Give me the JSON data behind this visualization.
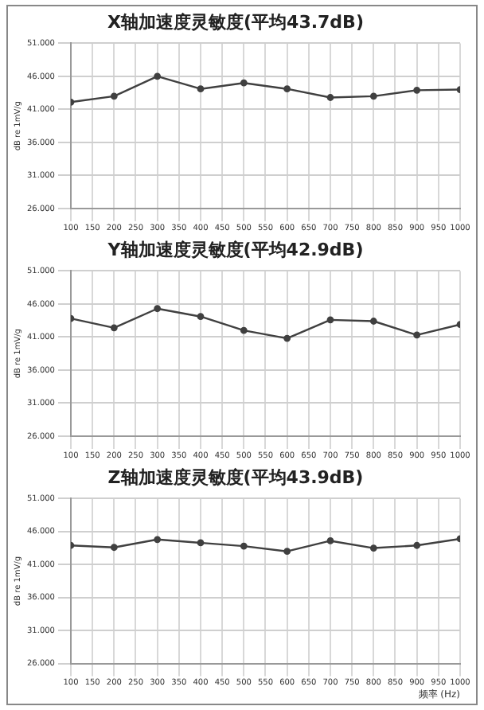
{
  "chart_data": [
    {
      "type": "line",
      "title": "X轴加速度灵敏度(平均43.7dB)",
      "ylabel": "dB re 1mV/g",
      "x": [
        100,
        200,
        300,
        400,
        500,
        600,
        700,
        800,
        900,
        1000
      ],
      "series": [
        {
          "color": "#404040",
          "values": [
            42.1,
            43.0,
            46.0,
            44.1,
            45.0,
            44.1,
            42.8,
            43.0,
            43.9,
            44.0
          ]
        }
      ],
      "xlim": [
        100,
        1000
      ],
      "xticks": [
        100,
        150,
        200,
        250,
        300,
        350,
        400,
        450,
        500,
        550,
        600,
        650,
        700,
        750,
        800,
        850,
        900,
        950,
        1000
      ],
      "ylim": [
        26,
        51
      ],
      "yticks": [
        {
          "value": 26,
          "label": "26.000"
        },
        {
          "value": 31,
          "label": "31.000"
        },
        {
          "value": 36,
          "label": "36.000"
        },
        {
          "value": 41,
          "label": "41.000"
        },
        {
          "value": 46,
          "label": "46.000"
        },
        {
          "value": 51,
          "label": "51.000"
        }
      ],
      "grid": true,
      "legend": false,
      "marker": "circle",
      "line_style": "solid"
    },
    {
      "type": "line",
      "title": "Y轴加速度灵敏度(平均42.9dB)",
      "ylabel": "dB re 1mV/g",
      "x": [
        100,
        200,
        300,
        400,
        500,
        600,
        700,
        800,
        900,
        1000
      ],
      "series": [
        {
          "color": "#404040",
          "values": [
            43.8,
            42.4,
            45.3,
            44.1,
            42.0,
            40.8,
            43.6,
            43.4,
            41.3,
            42.9
          ]
        }
      ],
      "xlim": [
        100,
        1000
      ],
      "xticks": [
        100,
        150,
        200,
        250,
        300,
        350,
        400,
        450,
        500,
        550,
        600,
        650,
        700,
        750,
        800,
        850,
        900,
        950,
        1000
      ],
      "ylim": [
        26,
        51
      ],
      "yticks": [
        {
          "value": 26,
          "label": "26.000"
        },
        {
          "value": 31,
          "label": "31.000"
        },
        {
          "value": 36,
          "label": "36.000"
        },
        {
          "value": 41,
          "label": "41.000"
        },
        {
          "value": 46,
          "label": "46.000"
        },
        {
          "value": 51,
          "label": "51.000"
        }
      ],
      "grid": true,
      "legend": false,
      "marker": "circle",
      "line_style": "solid"
    },
    {
      "type": "line",
      "title": "Z轴加速度灵敏度(平均43.9dB)",
      "ylabel": "dB re 1mV/g",
      "xlabel": "频率 (Hz)",
      "x": [
        100,
        200,
        300,
        400,
        500,
        600,
        700,
        800,
        900,
        1000
      ],
      "series": [
        {
          "color": "#404040",
          "values": [
            43.9,
            43.6,
            44.8,
            44.3,
            43.8,
            43.0,
            44.6,
            43.5,
            43.9,
            44.9
          ]
        }
      ],
      "xlim": [
        100,
        1000
      ],
      "xticks": [
        100,
        150,
        200,
        250,
        300,
        350,
        400,
        450,
        500,
        550,
        600,
        650,
        700,
        750,
        800,
        850,
        900,
        950,
        1000
      ],
      "ylim": [
        26,
        51
      ],
      "yticks": [
        {
          "value": 26,
          "label": "26.000"
        },
        {
          "value": 31,
          "label": "31.000"
        },
        {
          "value": 36,
          "label": "36.000"
        },
        {
          "value": 41,
          "label": "41.000"
        },
        {
          "value": 46,
          "label": "46.000"
        },
        {
          "value": 51,
          "label": "51.000"
        }
      ],
      "grid": true,
      "legend": false,
      "marker": "circle",
      "line_style": "solid"
    }
  ]
}
